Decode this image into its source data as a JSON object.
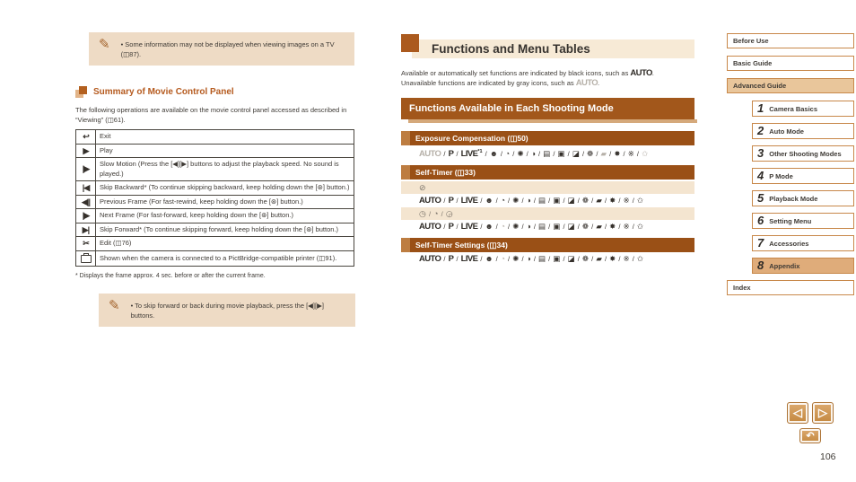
{
  "colors": {
    "accent": "#a2571b",
    "banner": "#9a5016",
    "band": "#f7ead6",
    "note_bg": "#eedbc5",
    "sub_row_bg": "#f4e5d0",
    "sidebar_border": "#c8884a",
    "active_tan": "#e9c69b",
    "gray_icon": "#b6b0a8"
  },
  "page": {
    "number": "106"
  },
  "left": {
    "note1": {
      "icon": "pencil",
      "text": "Some information may not be displayed when viewing images on a TV (◫87)."
    },
    "heading": "Summary of Movie Control Panel",
    "para": "The following operations are available on the movie control panel accessed as described in “Viewing” (◫61).",
    "table": {
      "rows": [
        {
          "name": "exit",
          "icon": "↩",
          "text": "Exit"
        },
        {
          "name": "play",
          "icon": "▶",
          "text": "Play"
        },
        {
          "name": "slow-motion",
          "icon": "|▶",
          "text": "Slow Motion (Press the [◀][▶] buttons to adjust the playback speed. No sound is played.)"
        },
        {
          "name": "skip-backward",
          "icon": "|◀",
          "text": "Skip Backward* (To continue skipping backward, keep holding down the [⊛] button.)"
        },
        {
          "name": "previous-frame",
          "icon": "◀||",
          "text": "Previous Frame (For fast-rewind, keep holding down the [⊛] button.)"
        },
        {
          "name": "next-frame",
          "icon": "|▶",
          "text": "Next Frame (For fast-forward, keep holding down the [⊛] button.)"
        },
        {
          "name": "skip-forward",
          "icon": "▶|",
          "text": "Skip Forward* (To continue skipping forward, keep holding down the [⊛] button.)"
        },
        {
          "name": "edit",
          "icon": "✂",
          "text": "Edit (◫76)"
        },
        {
          "name": "print",
          "icon": "PRINTER",
          "text": "Shown when the camera is connected to a PictBridge-compatible printer (◫91)."
        }
      ]
    },
    "footnote": "* Displays the frame approx. 4 sec. before or after the current frame.",
    "note2": {
      "icon": "pencil",
      "text": "To skip forward or back during movie playback, press the [◀][▶] buttons."
    }
  },
  "mid": {
    "title": "Functions and Menu Tables",
    "intro": [
      {
        "text": "Available or automatically set functions are indicated by black icons, such as "
      },
      {
        "logo": "AUTO",
        "gray": false
      },
      {
        "text": "."
      },
      {
        "br": true
      },
      {
        "text": "Unavailable functions are indicated by gray icons, such as "
      },
      {
        "logo": "AUTO",
        "gray": true
      },
      {
        "text": "."
      }
    ],
    "section_banner": "Functions Available in Each Shooting Mode",
    "groups": [
      {
        "banner": "Exposure Compensation (◫50)",
        "rows": [
          {
            "type": "modes",
            "tokens": [
              {
                "t": "AUTO",
                "logo": true,
                "gray": true,
                "name": "auto-mode"
              },
              {
                "t": "P",
                "logo": true,
                "name": "program-mode"
              },
              {
                "t": "LIVE",
                "logo": true,
                "sup": "*1",
                "name": "live-view-mode"
              },
              {
                "t": "☻",
                "name": "portrait-mode"
              },
              {
                "t": "◔",
                "name": "face-self-timer-mode"
              },
              {
                "t": "✺",
                "name": "low-light-mode"
              },
              {
                "t": "◑",
                "name": "fisheye-effect-mode"
              },
              {
                "t": "▤",
                "name": "miniature-effect-mode"
              },
              {
                "t": "▣",
                "name": "toy-camera-mode"
              },
              {
                "t": "◪",
                "name": "monochrome-mode"
              },
              {
                "t": "❁",
                "name": "super-vivid-mode"
              },
              {
                "t": "▰",
                "gray": true,
                "name": "poster-effect-mode"
              },
              {
                "t": "✸",
                "name": "fireworks-mode"
              },
              {
                "t": "※",
                "name": "sparkle-mode"
              },
              {
                "t": "✩",
                "gray": true,
                "name": "long-shutter-mode"
              }
            ]
          }
        ]
      },
      {
        "banner": "Self-Timer (◫33)",
        "rows": [
          {
            "type": "sub",
            "tokens": [
              {
                "t": "⊘",
                "name": "self-timer-off"
              }
            ]
          },
          {
            "type": "modes",
            "tokens": [
              {
                "t": "AUTO",
                "logo": true,
                "name": "auto-mode"
              },
              {
                "t": "P",
                "logo": true,
                "name": "program-mode"
              },
              {
                "t": "LIVE",
                "logo": true,
                "name": "live-view-mode"
              },
              {
                "t": "☻",
                "name": "portrait-mode"
              },
              {
                "t": "◔",
                "name": "face-self-timer-mode"
              },
              {
                "t": "✺",
                "name": "low-light-mode"
              },
              {
                "t": "◑",
                "name": "fisheye-effect-mode"
              },
              {
                "t": "▤",
                "name": "miniature-effect-mode"
              },
              {
                "t": "▣",
                "name": "toy-camera-mode"
              },
              {
                "t": "◪",
                "name": "monochrome-mode"
              },
              {
                "t": "❁",
                "name": "super-vivid-mode"
              },
              {
                "t": "▰",
                "name": "poster-effect-mode"
              },
              {
                "t": "✸",
                "name": "fireworks-mode"
              },
              {
                "t": "※",
                "name": "sparkle-mode"
              },
              {
                "t": "✩",
                "name": "long-shutter-mode"
              }
            ]
          },
          {
            "type": "sub",
            "tokens": [
              {
                "t": "◷",
                "name": "self-timer-10sec"
              },
              {
                "t": "◔",
                "name": "self-timer-2sec"
              },
              {
                "t": "◶",
                "name": "self-timer-custom"
              }
            ]
          },
          {
            "type": "modes",
            "tokens": [
              {
                "t": "AUTO",
                "logo": true,
                "name": "auto-mode"
              },
              {
                "t": "P",
                "logo": true,
                "name": "program-mode"
              },
              {
                "t": "LIVE",
                "logo": true,
                "name": "live-view-mode"
              },
              {
                "t": "☻",
                "name": "portrait-mode"
              },
              {
                "t": "◔",
                "gray": true,
                "name": "face-self-timer-mode"
              },
              {
                "t": "✺",
                "name": "low-light-mode"
              },
              {
                "t": "◑",
                "name": "fisheye-effect-mode"
              },
              {
                "t": "▤",
                "name": "miniature-effect-mode"
              },
              {
                "t": "▣",
                "name": "toy-camera-mode"
              },
              {
                "t": "◪",
                "name": "monochrome-mode"
              },
              {
                "t": "❁",
                "name": "super-vivid-mode"
              },
              {
                "t": "▰",
                "name": "poster-effect-mode"
              },
              {
                "t": "✸",
                "name": "fireworks-mode"
              },
              {
                "t": "※",
                "name": "sparkle-mode"
              },
              {
                "t": "✩",
                "name": "long-shutter-mode"
              }
            ]
          }
        ]
      },
      {
        "banner": "Self-Timer Settings (◫34)",
        "rows": [
          {
            "type": "modes",
            "tokens": [
              {
                "t": "AUTO",
                "logo": true,
                "name": "auto-mode"
              },
              {
                "t": "P",
                "logo": true,
                "name": "program-mode"
              },
              {
                "t": "LIVE",
                "logo": true,
                "name": "live-view-mode"
              },
              {
                "t": "☻",
                "name": "portrait-mode"
              },
              {
                "t": "◔",
                "gray": true,
                "name": "face-self-timer-mode"
              },
              {
                "t": "✺",
                "name": "low-light-mode"
              },
              {
                "t": "◑",
                "name": "fisheye-effect-mode"
              },
              {
                "t": "▤",
                "name": "miniature-effect-mode"
              },
              {
                "t": "▣",
                "name": "toy-camera-mode"
              },
              {
                "t": "◪",
                "name": "monochrome-mode"
              },
              {
                "t": "❁",
                "name": "super-vivid-mode"
              },
              {
                "t": "▰",
                "name": "poster-effect-mode"
              },
              {
                "t": "✸",
                "name": "fireworks-mode"
              },
              {
                "t": "※",
                "name": "sparkle-mode"
              },
              {
                "t": "✩",
                "name": "long-shutter-mode"
              }
            ]
          }
        ]
      }
    ]
  },
  "sidebar": {
    "top_items": [
      {
        "label": "Before Use",
        "active": false
      },
      {
        "label": "Basic Guide",
        "active": false
      },
      {
        "label": "Advanced Guide",
        "active": true
      }
    ],
    "chapters": [
      {
        "num": "1",
        "label": "Camera Basics",
        "active": false
      },
      {
        "num": "2",
        "label": "Auto Mode",
        "active": false
      },
      {
        "num": "3",
        "label": "Other Shooting Modes",
        "active": false
      },
      {
        "num": "4",
        "label": "P Mode",
        "active": false
      },
      {
        "num": "5",
        "label": "Playback Mode",
        "active": false
      },
      {
        "num": "6",
        "label": "Setting Menu",
        "active": false
      },
      {
        "num": "7",
        "label": "Accessories",
        "active": false
      },
      {
        "num": "8",
        "label": "Appendix",
        "active": true
      }
    ],
    "index_label": "Index"
  },
  "nav": {
    "prev_icon": "◁",
    "next_icon": "▷",
    "return_icon": "↶"
  }
}
